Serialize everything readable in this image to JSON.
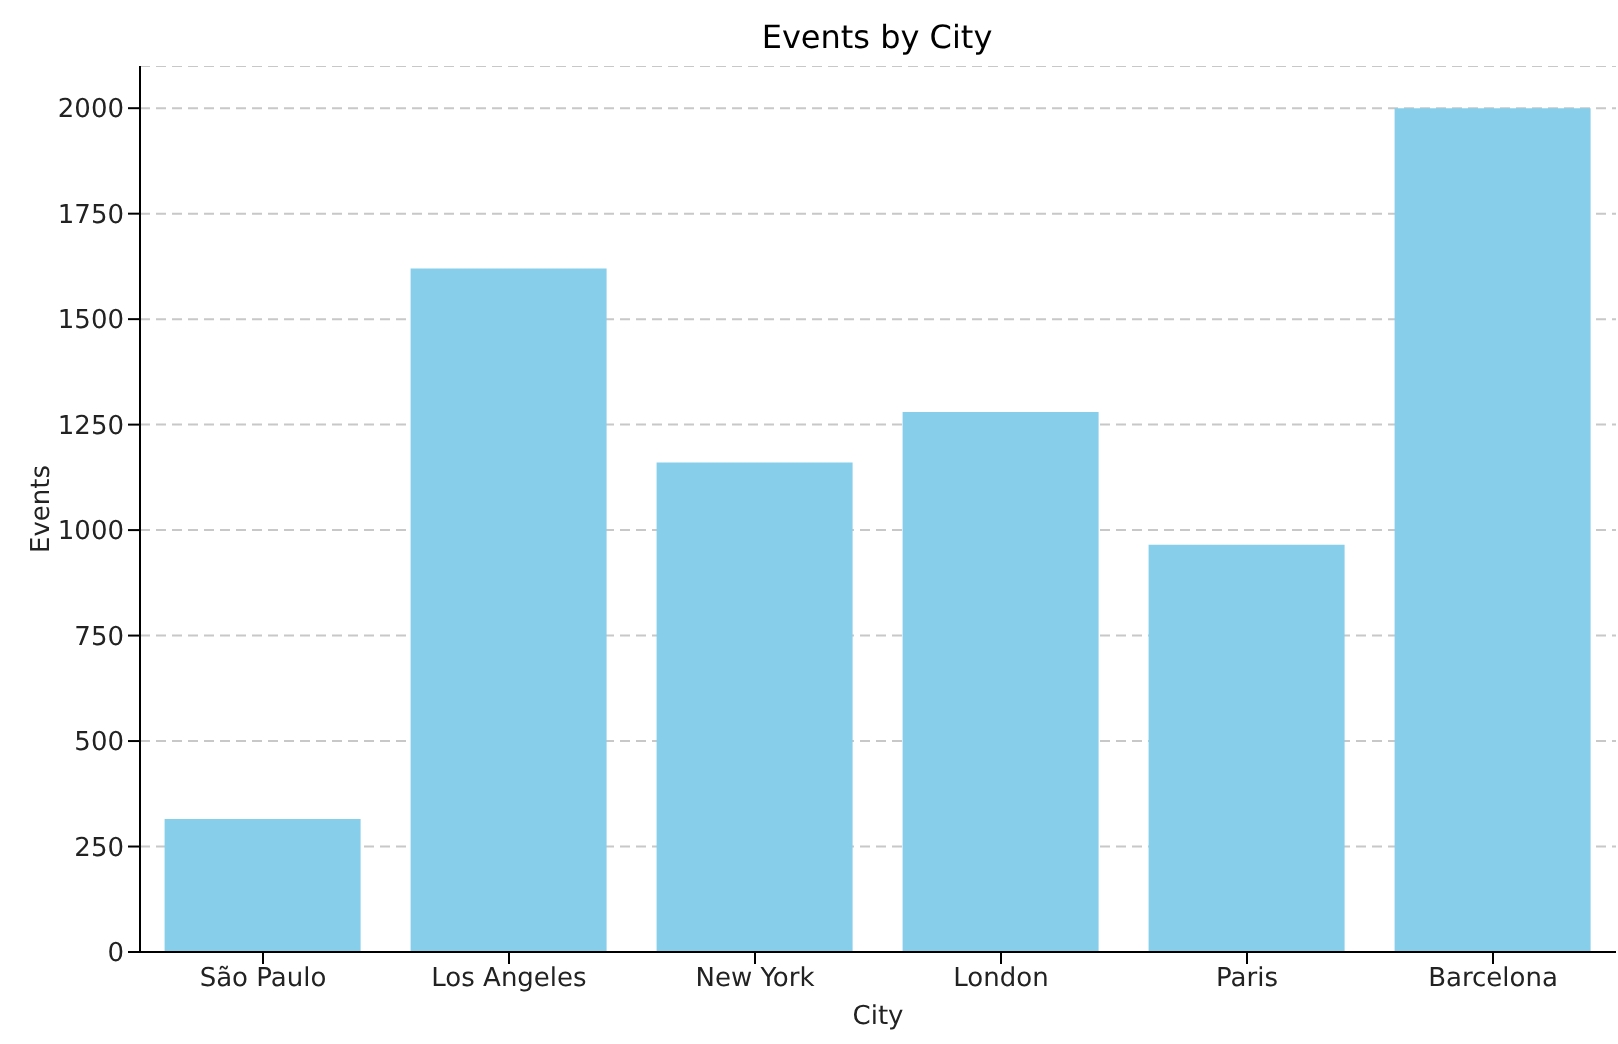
{
  "chart_data": {
    "type": "bar",
    "title": "Events by City",
    "xlabel": "City",
    "ylabel": "Events",
    "categories": [
      "São Paulo",
      "Los Angeles",
      "New York",
      "London",
      "Paris",
      "Barcelona"
    ],
    "values": [
      315,
      1620,
      1160,
      1280,
      965,
      2000
    ],
    "color": "#87ceeb",
    "ylim": [
      0,
      2100
    ],
    "yticks": [
      0,
      250,
      500,
      750,
      1000,
      1250,
      1500,
      1750,
      2000
    ],
    "grid": "y"
  }
}
